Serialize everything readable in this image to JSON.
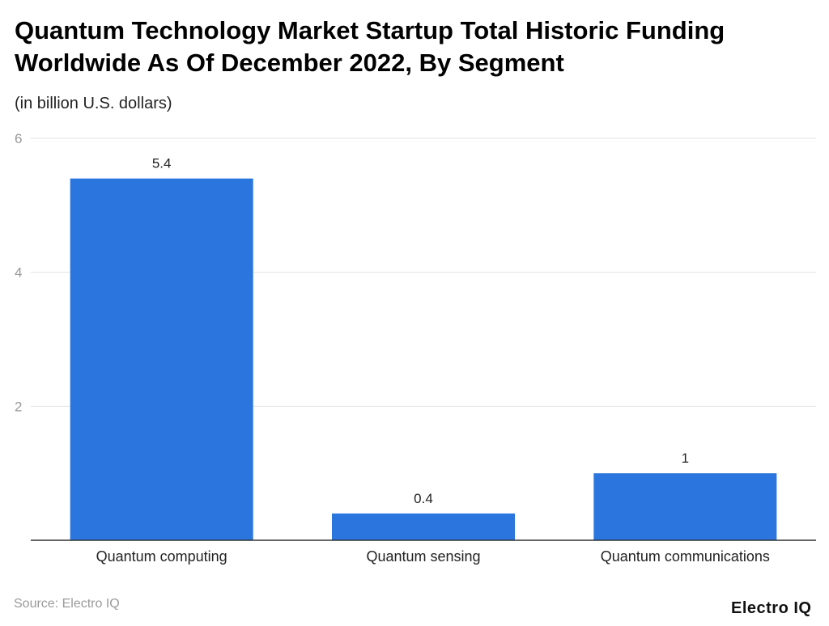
{
  "chart_data": {
    "type": "bar",
    "title": "Quantum Technology Market Startup Total Historic Funding Worldwide As Of December 2022, By Segment",
    "subtitle": "(in billion U.S. dollars)",
    "categories": [
      "Quantum computing",
      "Quantum sensing",
      "Quantum communications"
    ],
    "values": [
      5.4,
      0.4,
      1
    ],
    "data_labels": [
      "5.4",
      "0.4",
      "1"
    ],
    "yticks": [
      2,
      4,
      6
    ],
    "ylim": [
      0,
      6
    ],
    "grid": true,
    "bar_color": "#2a75de",
    "xlabel": "",
    "ylabel": ""
  },
  "source": "Source: Electro IQ",
  "logo": "Electro IQ"
}
